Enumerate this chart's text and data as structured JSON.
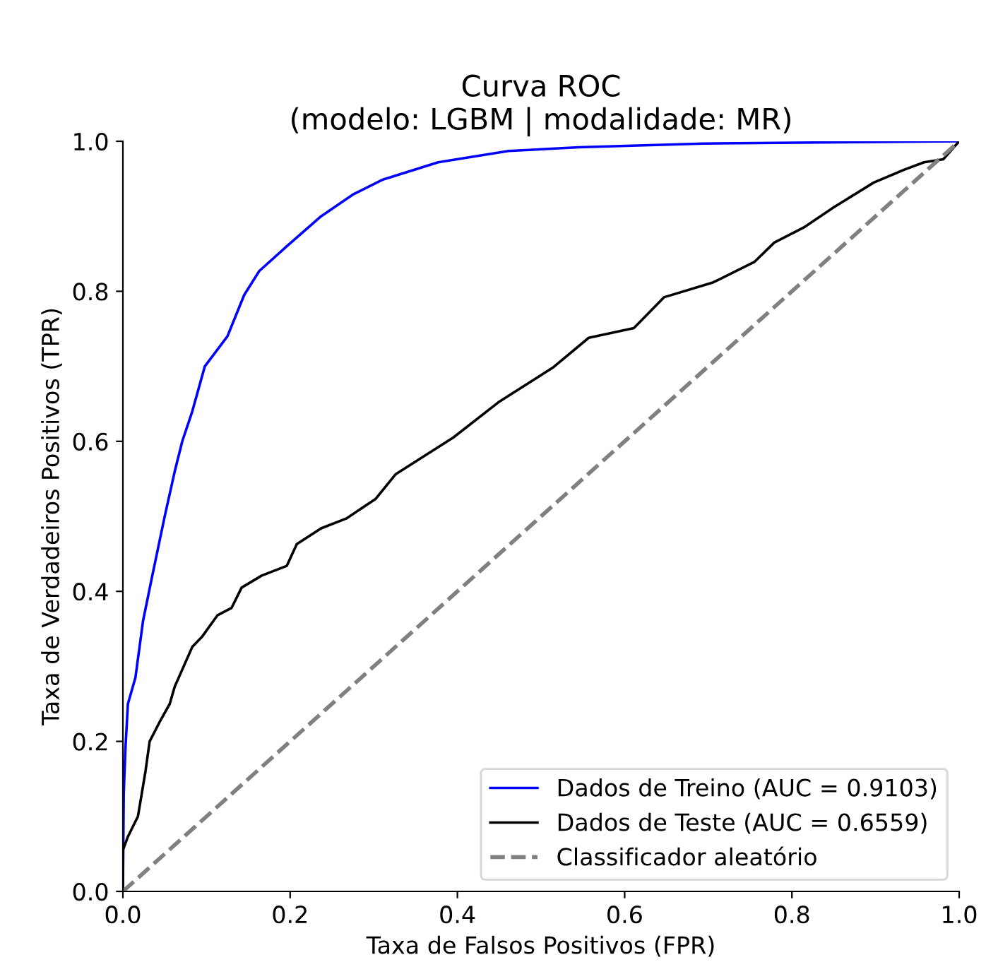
{
  "chart_data": {
    "type": "line",
    "title": "Curva ROC\n(modelo: LGBM | modalidade: MR)",
    "xlabel": "Taxa de Falsos Positivos (FPR)",
    "ylabel": "Taxa de Verdadeiros Positivos (TPR)",
    "xlim": [
      0,
      1
    ],
    "ylim": [
      0,
      1
    ],
    "xticks": [
      {
        "value": 0,
        "label": "0.0"
      },
      {
        "value": 0.2,
        "label": "0.2"
      },
      {
        "value": 0.4,
        "label": "0.4"
      },
      {
        "value": 0.6,
        "label": "0.6"
      },
      {
        "value": 0.8,
        "label": "0.8"
      },
      {
        "value": 1,
        "label": "1.0"
      }
    ],
    "yticks": [
      {
        "value": 0,
        "label": "0.0"
      },
      {
        "value": 0.2,
        "label": "0.2"
      },
      {
        "value": 0.4,
        "label": "0.4"
      },
      {
        "value": 0.6,
        "label": "0.6"
      },
      {
        "value": 0.8,
        "label": "0.8"
      },
      {
        "value": 1,
        "label": "1.0"
      }
    ],
    "grid": false,
    "legend": "bottom right",
    "series": [
      {
        "name": "Dados de Treino (AUC = 0.9103)",
        "color": "#0000ff",
        "line_style": "solid",
        "x": [
          0,
          0.001,
          0.003,
          0.006,
          0.015,
          0.024,
          0.035,
          0.05,
          0.062,
          0.071,
          0.083,
          0.098,
          0.125,
          0.145,
          0.163,
          0.196,
          0.237,
          0.275,
          0.311,
          0.377,
          0.461,
          0.545,
          0.694,
          1
        ],
        "values": [
          0,
          0.13,
          0.19,
          0.25,
          0.285,
          0.36,
          0.42,
          0.5,
          0.56,
          0.6,
          0.64,
          0.7,
          0.74,
          0.795,
          0.827,
          0.86,
          0.9,
          0.929,
          0.949,
          0.972,
          0.987,
          0.992,
          0.997,
          1
        ]
      },
      {
        "name": "Dados de Teste (AUC = 0.6559)",
        "color": "#000000",
        "line_style": "solid",
        "x": [
          0,
          0,
          0.006,
          0.018,
          0.027,
          0.032,
          0.044,
          0.056,
          0.062,
          0.083,
          0.095,
          0.113,
          0.13,
          0.142,
          0.166,
          0.196,
          0.208,
          0.237,
          0.267,
          0.302,
          0.326,
          0.395,
          0.449,
          0.515,
          0.557,
          0.611,
          0.647,
          0.706,
          0.755,
          0.779,
          0.814,
          0.85,
          0.898,
          0.934,
          0.958,
          0.981,
          1
        ],
        "values": [
          0,
          0.055,
          0.073,
          0.1,
          0.16,
          0.2,
          0.226,
          0.25,
          0.273,
          0.326,
          0.34,
          0.368,
          0.378,
          0.405,
          0.421,
          0.434,
          0.463,
          0.484,
          0.497,
          0.523,
          0.556,
          0.605,
          0.652,
          0.699,
          0.738,
          0.751,
          0.792,
          0.812,
          0.839,
          0.865,
          0.885,
          0.912,
          0.945,
          0.962,
          0.972,
          0.976,
          1
        ]
      },
      {
        "name": "Classificador aleatório",
        "color": "#808080",
        "line_style": "dashed",
        "x": [
          0,
          1
        ],
        "values": [
          0,
          1
        ]
      }
    ]
  }
}
